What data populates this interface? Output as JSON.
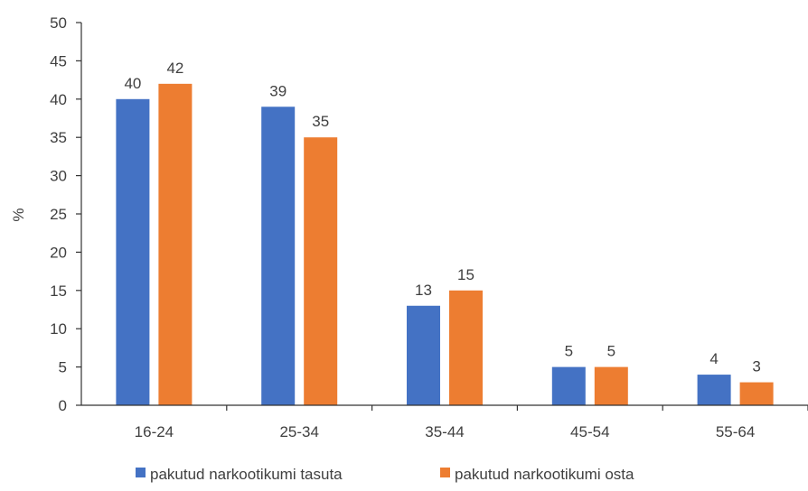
{
  "chart_data": {
    "type": "bar",
    "title": "",
    "xlabel": "",
    "ylabel": "%",
    "categories": [
      "16-24",
      "25-34",
      "35-44",
      "45-54",
      "55-64"
    ],
    "series": [
      {
        "name": "pakutud narkootikumi tasuta",
        "values": [
          40,
          39,
          13,
          5,
          4
        ],
        "color": "#4472C4"
      },
      {
        "name": "pakutud narkootikumi osta",
        "values": [
          42,
          35,
          15,
          5,
          3
        ],
        "color": "#ED7D31"
      }
    ],
    "ylim": [
      0,
      50
    ],
    "yticks": [
      0,
      5,
      10,
      15,
      20,
      25,
      30,
      35,
      40,
      45,
      50
    ],
    "grid": false,
    "legend_position": "bottom",
    "data_labels": true
  }
}
